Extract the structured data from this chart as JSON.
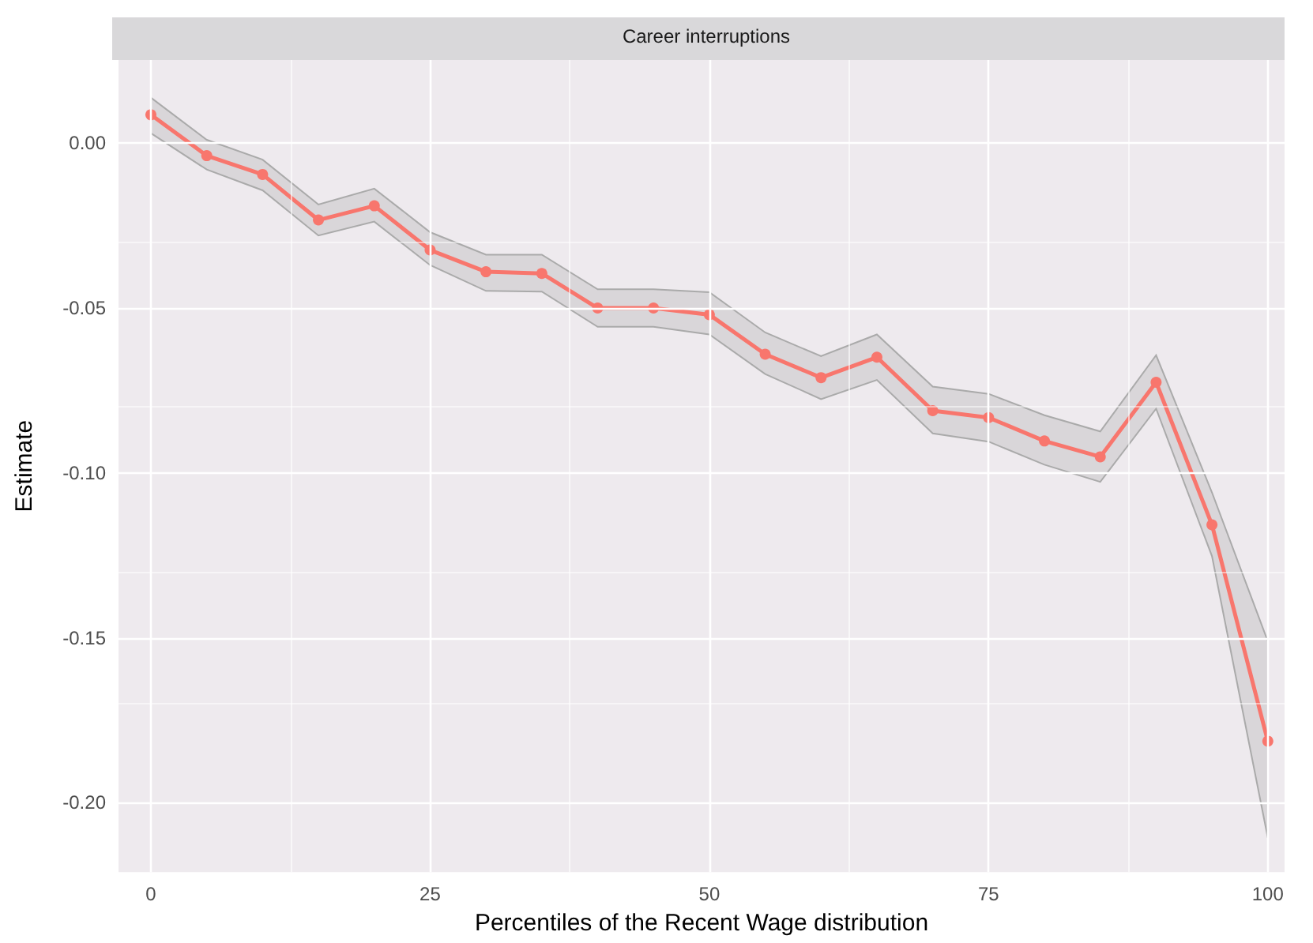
{
  "chart_data": {
    "type": "line",
    "title": "Career interruptions",
    "xlabel": "Percentiles of the Recent Wage distribution",
    "ylabel": "Estimate",
    "x": [
      0,
      5,
      10,
      15,
      20,
      25,
      30,
      35,
      40,
      45,
      50,
      55,
      60,
      65,
      70,
      75,
      80,
      85,
      90,
      95,
      100
    ],
    "series": [
      {
        "color": "#f8766d",
        "values": [
          0.0086,
          -0.0038,
          -0.0095,
          -0.0233,
          -0.019,
          -0.0324,
          -0.039,
          -0.0395,
          -0.05,
          -0.05,
          -0.052,
          -0.064,
          -0.0711,
          -0.0649,
          -0.0811,
          -0.0832,
          -0.0903,
          -0.0951,
          -0.0725,
          -0.1157,
          -0.1813
        ],
        "lower": [
          0.003,
          -0.008,
          -0.0143,
          -0.028,
          -0.0238,
          -0.037,
          -0.0448,
          -0.045,
          -0.0557,
          -0.0557,
          -0.058,
          -0.07,
          -0.0776,
          -0.0718,
          -0.088,
          -0.0905,
          -0.0975,
          -0.1027,
          -0.0805,
          -0.1252,
          -0.2106
        ],
        "upper": [
          0.0138,
          0.001,
          -0.005,
          -0.0186,
          -0.0138,
          -0.027,
          -0.0338,
          -0.0338,
          -0.0443,
          -0.0443,
          -0.0452,
          -0.0574,
          -0.0646,
          -0.058,
          -0.0738,
          -0.076,
          -0.0825,
          -0.0874,
          -0.0643,
          -0.1059,
          -0.151
        ]
      }
    ],
    "xlim": [
      -2.9,
      101.5
    ],
    "xticks": [
      0,
      25,
      50,
      75,
      100
    ],
    "ylim": [
      -0.221,
      0.0252
    ],
    "yticks": [
      {
        "value": 0,
        "label": "0.00"
      },
      {
        "value": -0.05,
        "label": "-0.05"
      },
      {
        "value": -0.1,
        "label": "-0.10"
      },
      {
        "value": -0.15,
        "label": "-0.15"
      },
      {
        "value": -0.2,
        "label": "-0.20"
      }
    ],
    "grid": true,
    "marker": "circle",
    "line_style": "solid"
  }
}
